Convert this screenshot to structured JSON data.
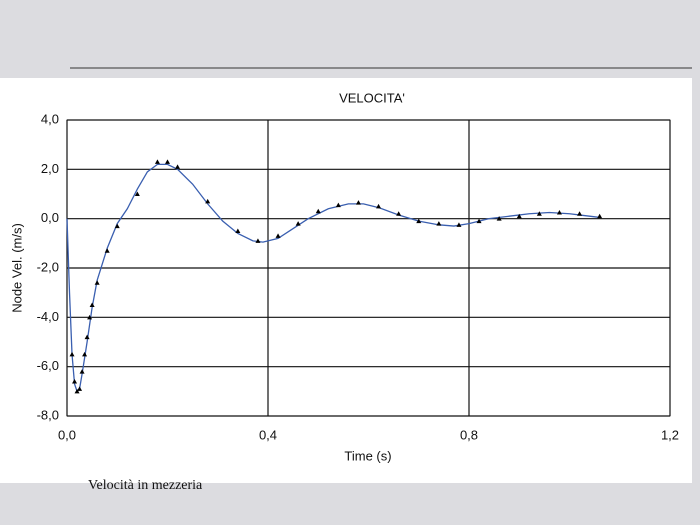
{
  "caption": "Velocità in mezzeria",
  "chart_data": {
    "type": "line",
    "title": "VELOCITA'",
    "x_label": "Time (s)",
    "y_label": "Node Vel. (m/s)",
    "xlim": [
      0,
      1.2
    ],
    "ylim": [
      -8,
      4
    ],
    "grid": true,
    "xticks": [
      {
        "value": 0,
        "label": "0,0"
      },
      {
        "value": 0.4,
        "label": "0,4"
      },
      {
        "value": 0.8,
        "label": "0,8"
      },
      {
        "value": 1.2,
        "label": "1,2"
      }
    ],
    "yticks": [
      {
        "value": 4,
        "label": "4,0"
      },
      {
        "value": 2,
        "label": "2,0"
      },
      {
        "value": 0,
        "label": "0,0"
      },
      {
        "value": -2,
        "label": "-2,0"
      },
      {
        "value": -4,
        "label": "-4,0"
      },
      {
        "value": -6,
        "label": "-6,0"
      },
      {
        "value": -8,
        "label": "-8,0"
      }
    ],
    "series": [
      {
        "color": "#3a5fb0",
        "x": [
          0,
          0.005,
          0.01,
          0.015,
          0.02,
          0.025,
          0.03,
          0.04,
          0.05,
          0.06,
          0.08,
          0.1,
          0.12,
          0.14,
          0.16,
          0.18,
          0.2,
          0.22,
          0.25,
          0.28,
          0.31,
          0.34,
          0.37,
          0.39,
          0.42,
          0.45,
          0.48,
          0.52,
          0.56,
          0.59,
          0.62,
          0.66,
          0.7,
          0.74,
          0.77,
          0.8,
          0.84,
          0.88,
          0.92,
          0.96,
          1.0,
          1.04,
          1.06
        ],
        "values": [
          0,
          -3,
          -5.5,
          -6.7,
          -7.0,
          -6.9,
          -6.3,
          -5.0,
          -3.6,
          -2.5,
          -1.2,
          -0.2,
          0.4,
          1.2,
          1.9,
          2.2,
          2.2,
          2.0,
          1.4,
          0.6,
          -0.1,
          -0.6,
          -0.9,
          -0.95,
          -0.8,
          -0.4,
          0.0,
          0.4,
          0.6,
          0.6,
          0.45,
          0.15,
          -0.1,
          -0.25,
          -0.3,
          -0.2,
          0.0,
          0.1,
          0.2,
          0.25,
          0.2,
          0.1,
          0.05
        ]
      },
      {
        "color": "#000000",
        "marker": "triangle",
        "x": [
          0.01,
          0.015,
          0.02,
          0.025,
          0.03,
          0.035,
          0.04,
          0.045,
          0.05,
          0.06,
          0.08,
          0.1,
          0.14,
          0.18,
          0.2,
          0.22,
          0.28,
          0.34,
          0.38,
          0.42,
          0.46,
          0.5,
          0.54,
          0.58,
          0.62,
          0.66,
          0.7,
          0.74,
          0.78,
          0.82,
          0.86,
          0.9,
          0.94,
          0.98,
          1.02,
          1.06
        ],
        "values": [
          -5.5,
          -6.6,
          -7.0,
          -6.9,
          -6.2,
          -5.5,
          -4.8,
          -4.0,
          -3.5,
          -2.6,
          -1.3,
          -0.3,
          1.0,
          2.3,
          2.3,
          2.1,
          0.7,
          -0.5,
          -0.9,
          -0.7,
          -0.2,
          0.3,
          0.55,
          0.65,
          0.5,
          0.2,
          -0.1,
          -0.2,
          -0.25,
          -0.1,
          0.0,
          0.1,
          0.2,
          0.25,
          0.2,
          0.1
        ]
      }
    ]
  }
}
